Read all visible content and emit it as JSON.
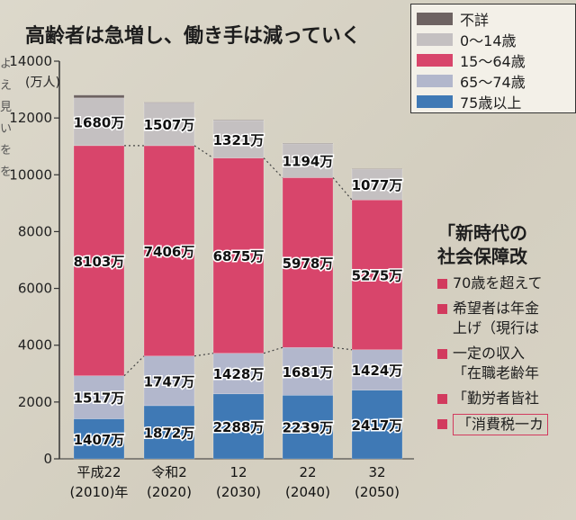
{
  "title": "高齢者は急増し、働き手は減っていく",
  "side_text": [
    "よ",
    "え",
    "見",
    "い",
    "を",
    "を"
  ],
  "legend": [
    {
      "label": "不詳",
      "color": "#6e6362"
    },
    {
      "label": "0～14歳",
      "color": "#c4c0c1"
    },
    {
      "label": "15～64歳",
      "color": "#d8456b"
    },
    {
      "label": "65～74歳",
      "color": "#b2b7cc"
    },
    {
      "label": "75歳以上",
      "color": "#3f79b5"
    }
  ],
  "chart_data": {
    "type": "bar",
    "stacked": true,
    "unit_label": "(万人)",
    "categories": [
      {
        "line1": "平成22",
        "line2": "(2010)年"
      },
      {
        "line1": "令和2",
        "line2": "(2020)"
      },
      {
        "line1": "12",
        "line2": "(2030)"
      },
      {
        "line1": "22",
        "line2": "(2040)"
      },
      {
        "line1": "32",
        "line2": "(2050)"
      }
    ],
    "series": [
      {
        "name": "75歳以上",
        "color": "#3f79b5",
        "values": [
          1407,
          1872,
          2288,
          2239,
          2417
        ],
        "labels": [
          "1407万",
          "1872万",
          "2288万",
          "2239万",
          "2417万"
        ]
      },
      {
        "name": "65～74歳",
        "color": "#b2b7cc",
        "values": [
          1517,
          1747,
          1428,
          1681,
          1424
        ],
        "labels": [
          "1517万",
          "1747万",
          "1428万",
          "1681万",
          "1424万"
        ]
      },
      {
        "name": "15～64歳",
        "color": "#d8456b",
        "values": [
          8103,
          7406,
          6875,
          5978,
          5275
        ],
        "labels": [
          "8103万",
          "7406万",
          "6875万",
          "5978万",
          "5275万"
        ]
      },
      {
        "name": "0～14歳",
        "color": "#c4c0c1",
        "values": [
          1680,
          1507,
          1321,
          1194,
          1077
        ],
        "labels": [
          "1680万",
          "1507万",
          "1321万",
          "1194万",
          "1077万"
        ]
      },
      {
        "name": "不詳",
        "color": "#6e6362",
        "values": [
          100,
          20,
          20,
          20,
          20
        ]
      }
    ],
    "y_ticks": [
      0,
      2000,
      4000,
      6000,
      8000,
      10000,
      12000,
      14000
    ],
    "ylim": [
      0,
      14000
    ],
    "dotted_connectors": true
  },
  "right_box": {
    "title_line1": "「新時代の",
    "title_line2": "社会保障改",
    "items": [
      {
        "lines": [
          "70歳を超えて"
        ],
        "outlined": false
      },
      {
        "lines": [
          "希望者は年金",
          "上げ（現行は"
        ],
        "outlined": false
      },
      {
        "lines": [
          "一定の収入",
          "「在職老齢年"
        ],
        "outlined": false
      },
      {
        "lines": [
          "「勤労者皆社"
        ],
        "outlined": false
      },
      {
        "lines": [
          "「消費税一カ"
        ],
        "outlined": true
      }
    ]
  }
}
